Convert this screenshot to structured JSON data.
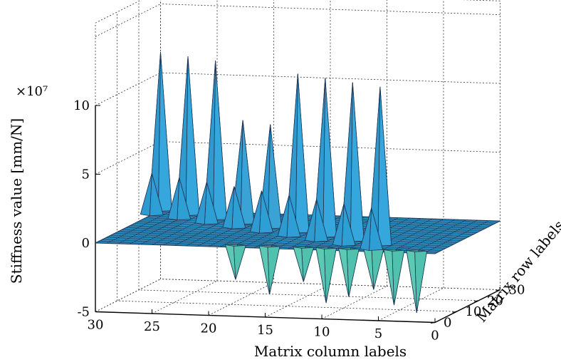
{
  "chart_data": {
    "type": "surface3d",
    "title": "",
    "zlabel": "Stiffness value [mm/N]",
    "xlabel": "Matrix column labels",
    "ylabel": "Matrix row labels",
    "exponent_label": "×10⁷",
    "x_ticks": [
      "0",
      "5",
      "10",
      "15",
      "20",
      "25",
      "30"
    ],
    "y_ticks": [
      "0",
      "10",
      "20",
      "30"
    ],
    "z_ticks": [
      "-5",
      "0",
      "5",
      "10"
    ],
    "xlim": [
      0,
      30
    ],
    "ylim": [
      0,
      30
    ],
    "zlim": [
      -5,
      10
    ],
    "z_scale": 10000000,
    "grid": true,
    "colors": {
      "surface": "#2e9fd4",
      "positive_peak": "#f4ec25",
      "medium_peak": "#e7b34c",
      "negative_peak": "#4fc1ad",
      "low_cell": "#6b4fc7",
      "edge": "#1d3554"
    },
    "diagonal_peaks": [
      {
        "index": 30,
        "value": 11.5
      },
      {
        "index": 27,
        "value": 11.5
      },
      {
        "index": 24,
        "value": 11.5
      },
      {
        "index": 21,
        "value": 7.5
      },
      {
        "index": 18,
        "value": 7.5
      },
      {
        "index": 15,
        "value": 11.5
      },
      {
        "index": 12,
        "value": 11.5
      },
      {
        "index": 9,
        "value": 11.5
      },
      {
        "index": 6,
        "value": 11.5
      }
    ],
    "secondary_peaks": [
      {
        "i": 30,
        "j": 26,
        "value": 3.0
      },
      {
        "i": 27,
        "j": 23,
        "value": 3.0
      },
      {
        "i": 24,
        "j": 20,
        "value": 3.0
      },
      {
        "i": 21,
        "j": 17,
        "value": 3.0
      },
      {
        "i": 18,
        "j": 14,
        "value": 3.0
      },
      {
        "i": 15,
        "j": 11,
        "value": 3.0
      },
      {
        "i": 12,
        "j": 8,
        "value": 3.0
      },
      {
        "i": 9,
        "j": 5,
        "value": 3.0
      },
      {
        "i": 6,
        "j": 2,
        "value": 3.0
      }
    ],
    "negative_peaks": [
      {
        "i": 18,
        "j": 2,
        "value": -2.5
      },
      {
        "i": 15,
        "j": 2,
        "value": -3.5
      },
      {
        "i": 12,
        "j": 2,
        "value": -2.5
      },
      {
        "i": 10,
        "j": 2,
        "value": -4.0
      },
      {
        "i": 8,
        "j": 2,
        "value": -3.5
      },
      {
        "i": 6,
        "j": 3,
        "value": -3.0
      },
      {
        "i": 4,
        "j": 2,
        "value": -4.0
      },
      {
        "i": 2,
        "j": 2,
        "value": -4.5
      }
    ]
  }
}
